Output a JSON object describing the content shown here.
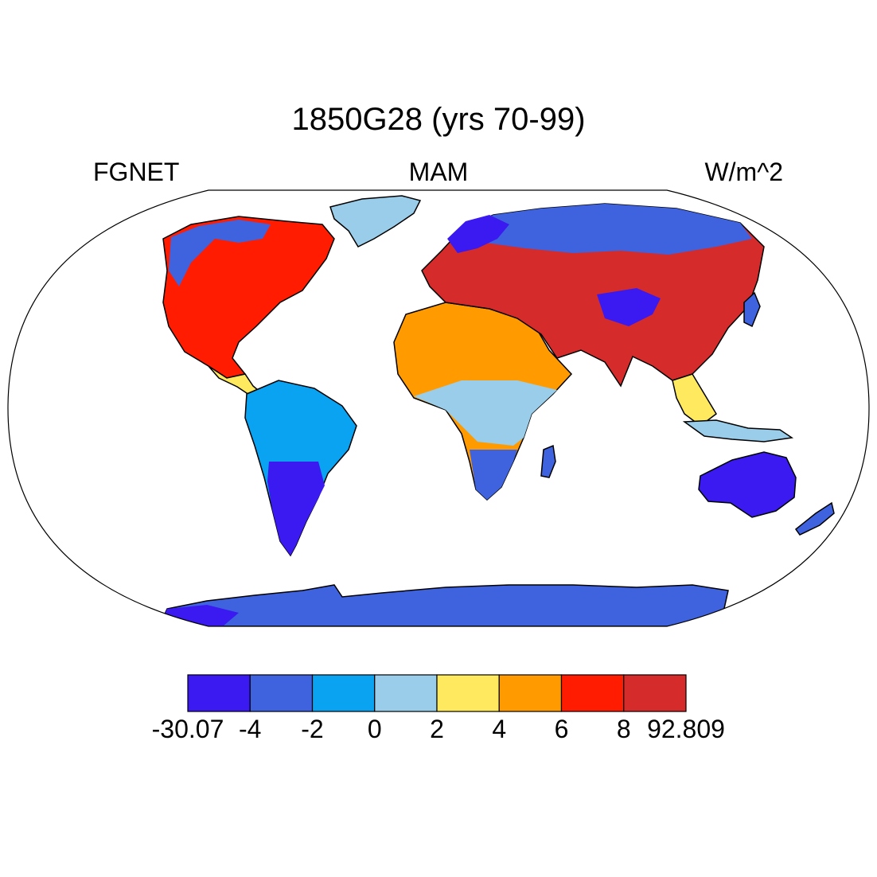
{
  "title": "1850G28 (yrs 70-99)",
  "left_label": "FGNET",
  "center_label": "MAM",
  "right_label": "W/m^2",
  "colorbar": {
    "colors": [
      "#3a1af0",
      "#3f63df",
      "#0aa3f2",
      "#99cdea",
      "#ffe95e",
      "#ff9b00",
      "#ff1c00",
      "#d52b2b"
    ],
    "labels": [
      "-30.07",
      "-4",
      "-2",
      "0",
      "2",
      "4",
      "6",
      "8",
      "92.809"
    ]
  },
  "regions": [
    {
      "name": "north-america",
      "class": 6
    },
    {
      "name": "south-america",
      "class": 2
    },
    {
      "name": "africa",
      "class": 5
    },
    {
      "name": "eurasia",
      "class": 7
    },
    {
      "name": "australia",
      "class": 0
    },
    {
      "name": "greenland",
      "class": 3
    },
    {
      "name": "antarctica",
      "class": 1
    }
  ]
}
